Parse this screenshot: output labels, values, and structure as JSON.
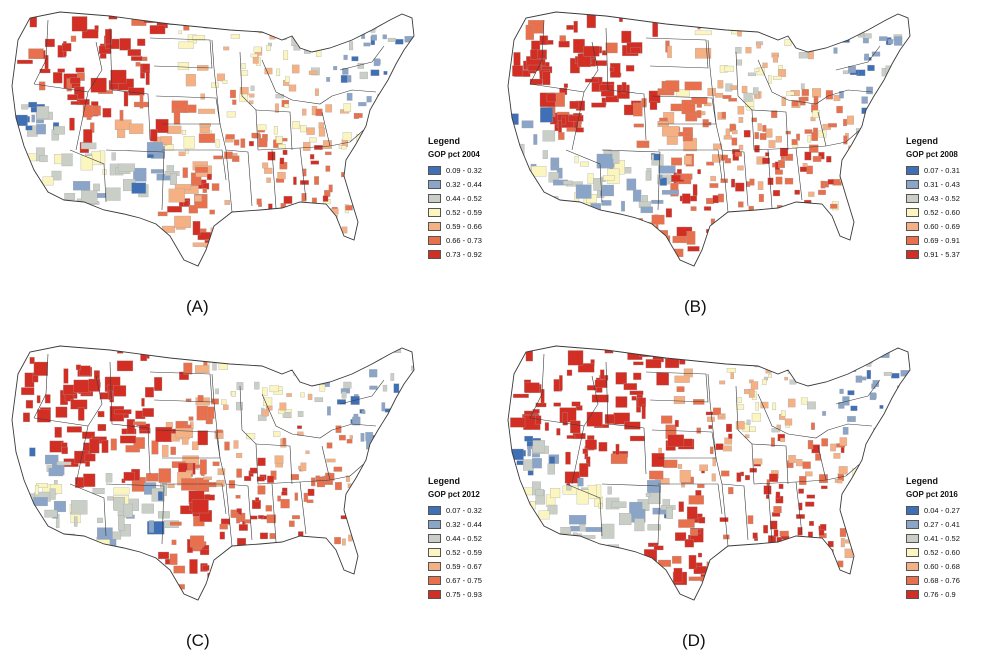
{
  "colors": {
    "class1": "#3f6fb4",
    "class2": "#8aa5c8",
    "class3": "#c9cfc7",
    "class4": "#fbf6c0",
    "class5": "#f5b083",
    "class6": "#e8704d",
    "class7": "#d32e24",
    "state_border": "#3a3a3a",
    "county_border": "#a0a0a0",
    "nodata": "#ffffff"
  },
  "panels": [
    {
      "label": "(A)",
      "legend_title": "Legend",
      "field": "GOP pct 2004",
      "classes": [
        "0.09 - 0.32",
        "0.32 - 0.44",
        "0.44 - 0.52",
        "0.52 - 0.59",
        "0.59 - 0.66",
        "0.66 - 0.73",
        "0.73 - 0.92"
      ]
    },
    {
      "label": "(B)",
      "legend_title": "Legend",
      "field": "GOP pct 2008",
      "classes": [
        "0.07 - 0.31",
        "0.31 - 0.43",
        "0.43 - 0.52",
        "0.52 - 0.60",
        "0.60 - 0.69",
        "0.69 - 0.91",
        "0.91 - 5.37"
      ]
    },
    {
      "label": "(C)",
      "legend_title": "Legend",
      "field": "GOP pct 2012",
      "classes": [
        "0.07 - 0.32",
        "0.32 - 0.44",
        "0.44 - 0.52",
        "0.52 - 0.59",
        "0.59 - 0.67",
        "0.67 - 0.75",
        "0.75 - 0.93"
      ]
    },
    {
      "label": "(D)",
      "legend_title": "Legend",
      "field": "GOP pct 2016",
      "classes": [
        "0.04 - 0.27",
        "0.27 - 0.41",
        "0.41 - 0.52",
        "0.52 - 0.60",
        "0.60 - 0.68",
        "0.68 - 0.76",
        "0.76 - 0.9"
      ]
    }
  ]
}
